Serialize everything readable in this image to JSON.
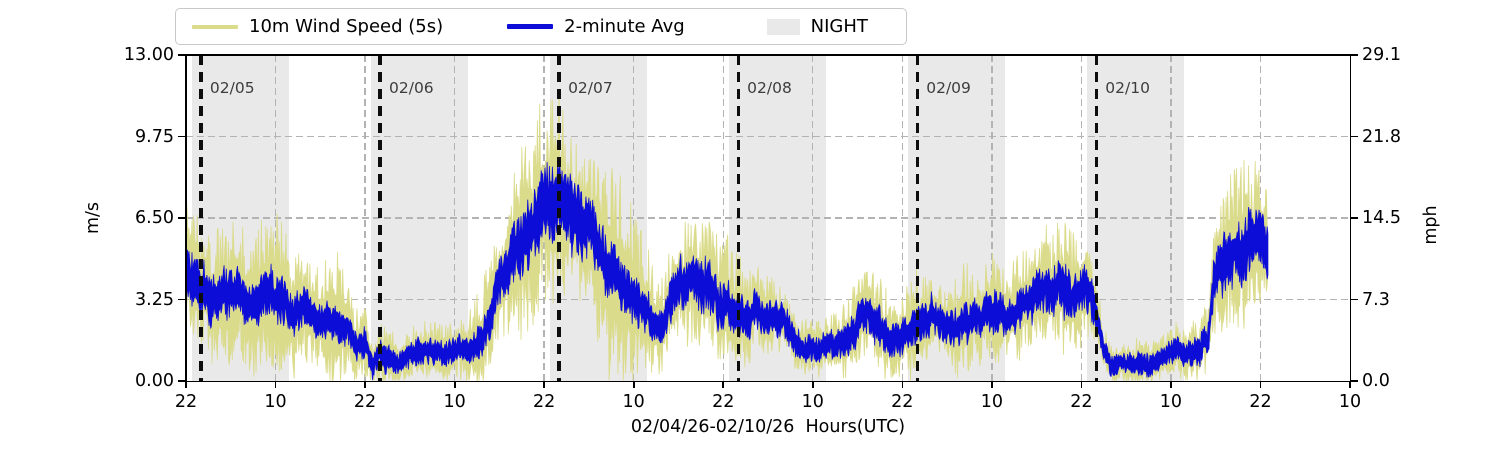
{
  "figure": {
    "background": "#ffffff"
  },
  "legend": {
    "items": [
      {
        "label": "10m Wind Speed (5s)",
        "swatch": "line",
        "color": "#dbdb8c"
      },
      {
        "label": "2-minute Avg",
        "swatch": "line",
        "color": "#0d0dd8"
      },
      {
        "label": "NIGHT",
        "swatch": "patch",
        "color": "#e9e9e9"
      }
    ]
  },
  "axes": {
    "left": {
      "title": "m/s",
      "tick_labels": [
        "13.00",
        "9.75",
        "6.50",
        "3.25",
        "0.00"
      ],
      "tick_values": [
        13,
        9.75,
        6.5,
        3.25,
        0
      ]
    },
    "right": {
      "title": "mph",
      "tick_labels": [
        "29.1",
        "21.8",
        "14.5",
        "7.3",
        "0.0"
      ]
    },
    "bottom": {
      "title": "02/04/26-02/10/26  Hours(UTC)",
      "tick_labels": [
        "22",
        "10",
        "22",
        "10",
        "22",
        "10",
        "22",
        "10",
        "22",
        "10",
        "22",
        "10",
        "22",
        "10"
      ],
      "tick_hours": [
        0,
        12,
        24,
        36,
        48,
        60,
        72,
        84,
        96,
        108,
        120,
        132,
        144,
        156
      ]
    }
  },
  "chart_data": {
    "type": "line",
    "title": "",
    "xlabel": "02/04/26-02/10/26  Hours(UTC)",
    "ylabel_left": "m/s",
    "ylabel_right": "mph",
    "x_axis": {
      "start": "02/04 22:00 UTC",
      "end": "02/11 10:00 UTC",
      "hours_span": 156,
      "data_end_hour": 145
    },
    "ylim_ms": [
      0,
      13
    ],
    "ylim_mph": [
      0,
      29.1
    ],
    "grid": true,
    "legend_position": "top",
    "series": [
      {
        "name": "10m Wind Speed (5s)",
        "color": "#dbdb8c",
        "style": "raw-5s-envelope"
      },
      {
        "name": "2-minute Avg",
        "color": "#0d0dd8",
        "style": "jagged-average-band"
      }
    ],
    "night_label": "NIGHT",
    "night_color": "#e9e9e9",
    "night_bands_hours": [
      [
        0.8,
        13.8
      ],
      [
        24.8,
        37.8
      ],
      [
        48.8,
        61.8
      ],
      [
        72.8,
        85.8
      ],
      [
        96.8,
        109.8
      ],
      [
        120.8,
        133.8
      ]
    ],
    "day_lines": [
      {
        "hour": 2,
        "label": "02/05"
      },
      {
        "hour": 26,
        "label": "02/06"
      },
      {
        "hour": 50,
        "label": "02/07"
      },
      {
        "hour": 74,
        "label": "02/08"
      },
      {
        "hour": 98,
        "label": "02/09"
      },
      {
        "hour": 122,
        "label": "02/10"
      }
    ],
    "control_points_hour_avg_gust": [
      [
        0,
        4.4,
        7.2
      ],
      [
        2,
        3.6,
        6.4
      ],
      [
        4,
        3.5,
        6.2
      ],
      [
        6,
        3.6,
        6.7
      ],
      [
        8,
        3.4,
        6.2
      ],
      [
        10,
        3.3,
        6.6
      ],
      [
        12,
        3.4,
        6.9
      ],
      [
        14,
        3.1,
        5.6
      ],
      [
        16,
        2.9,
        5.3
      ],
      [
        18,
        2.7,
        4.6
      ],
      [
        20,
        2.4,
        5.8
      ],
      [
        22,
        2.0,
        3.8
      ],
      [
        23,
        1.4,
        2.8
      ],
      [
        24,
        1.6,
        3.2
      ],
      [
        25,
        0.6,
        1.5
      ],
      [
        26,
        1.3,
        2.6
      ],
      [
        28,
        1.1,
        2.2
      ],
      [
        30,
        1.0,
        2.0
      ],
      [
        32,
        1.2,
        2.4
      ],
      [
        34,
        1.1,
        2.2
      ],
      [
        36,
        1.1,
        2.4
      ],
      [
        38,
        1.2,
        2.8
      ],
      [
        40,
        2.3,
        4.6
      ],
      [
        42,
        3.3,
        6.2
      ],
      [
        44,
        4.6,
        8.4
      ],
      [
        46,
        5.8,
        10.3
      ],
      [
        48,
        6.5,
        11.2
      ],
      [
        50,
        7.0,
        11.6
      ],
      [
        52,
        6.2,
        9.7
      ],
      [
        54,
        5.6,
        9.3
      ],
      [
        56,
        5.0,
        9.9
      ],
      [
        58,
        4.5,
        8.7
      ],
      [
        60,
        3.5,
        7.0
      ],
      [
        62,
        2.6,
        5.2
      ],
      [
        63,
        2.1,
        4.0
      ],
      [
        64,
        2.3,
        4.2
      ],
      [
        66,
        4.0,
        6.4
      ],
      [
        68,
        4.2,
        6.7
      ],
      [
        70,
        4.0,
        6.5
      ],
      [
        72,
        3.2,
        6.0
      ],
      [
        74,
        2.8,
        5.4
      ],
      [
        76,
        2.8,
        4.8
      ],
      [
        78,
        2.3,
        4.2
      ],
      [
        80,
        2.0,
        3.5
      ],
      [
        82,
        1.5,
        2.7
      ],
      [
        84,
        1.2,
        2.3
      ],
      [
        86,
        1.3,
        2.5
      ],
      [
        88,
        1.7,
        3.1
      ],
      [
        90,
        2.4,
        4.2
      ],
      [
        92,
        3.1,
        4.8
      ],
      [
        94,
        2.4,
        3.9
      ],
      [
        96,
        2.1,
        3.5
      ],
      [
        98,
        2.3,
        4.6
      ],
      [
        100,
        2.4,
        4.1
      ],
      [
        102,
        2.2,
        3.7
      ],
      [
        104,
        2.4,
        4.9
      ],
      [
        106,
        2.3,
        4.4
      ],
      [
        108,
        2.5,
        5.3
      ],
      [
        110,
        2.6,
        4.7
      ],
      [
        112,
        2.8,
        5.1
      ],
      [
        114,
        3.2,
        5.7
      ],
      [
        116,
        3.6,
        6.3
      ],
      [
        118,
        4.0,
        6.5
      ],
      [
        120,
        3.5,
        5.9
      ],
      [
        122,
        2.6,
        4.4
      ],
      [
        123,
        1.0,
        2.0
      ],
      [
        124,
        0.6,
        1.4
      ],
      [
        126,
        0.6,
        1.5
      ],
      [
        128,
        0.8,
        1.9
      ],
      [
        130,
        0.7,
        1.6
      ],
      [
        132,
        0.9,
        2.0
      ],
      [
        134,
        1.1,
        2.3
      ],
      [
        136,
        1.6,
        2.8
      ],
      [
        137,
        1.8,
        3.2
      ],
      [
        138,
        4.3,
        7.1
      ],
      [
        140,
        5.2,
        8.4
      ],
      [
        142,
        5.6,
        9.0
      ],
      [
        144,
        5.8,
        8.7
      ],
      [
        145,
        5.2,
        7.4
      ]
    ]
  }
}
